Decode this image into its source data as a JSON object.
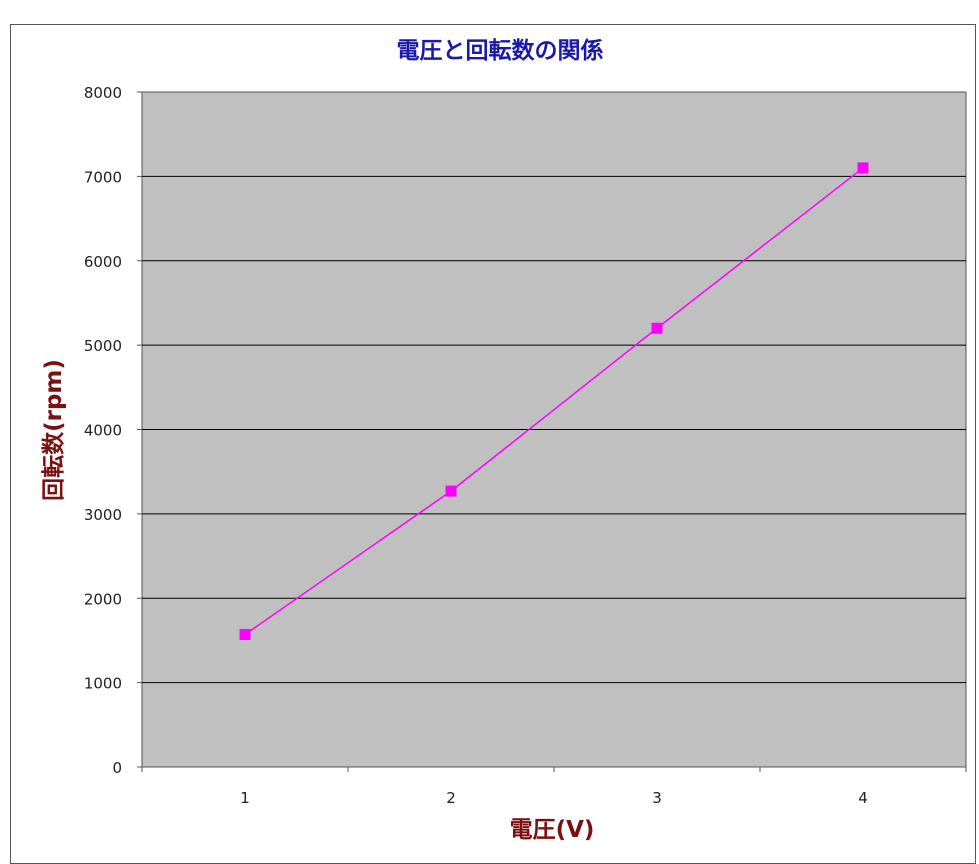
{
  "chart_data": {
    "type": "line",
    "title": "電圧と回転数の関係",
    "xlabel": "電圧(V)",
    "ylabel": "回転数(rpm)",
    "categories": [
      "1",
      "2",
      "3",
      "4"
    ],
    "series": [
      {
        "values": [
          1570,
          3270,
          5200,
          7100
        ]
      }
    ],
    "ylim": [
      0,
      8000
    ],
    "yticks": [
      0,
      1000,
      2000,
      3000,
      4000,
      5000,
      6000,
      7000,
      8000
    ],
    "grid": true,
    "legend": "none",
    "colors": {
      "plot_background": "#c0c0c0",
      "series": "#ff00ff",
      "title": "#1a1aa6",
      "axis_labels": "#7a1010",
      "gridline": "#000000"
    }
  }
}
